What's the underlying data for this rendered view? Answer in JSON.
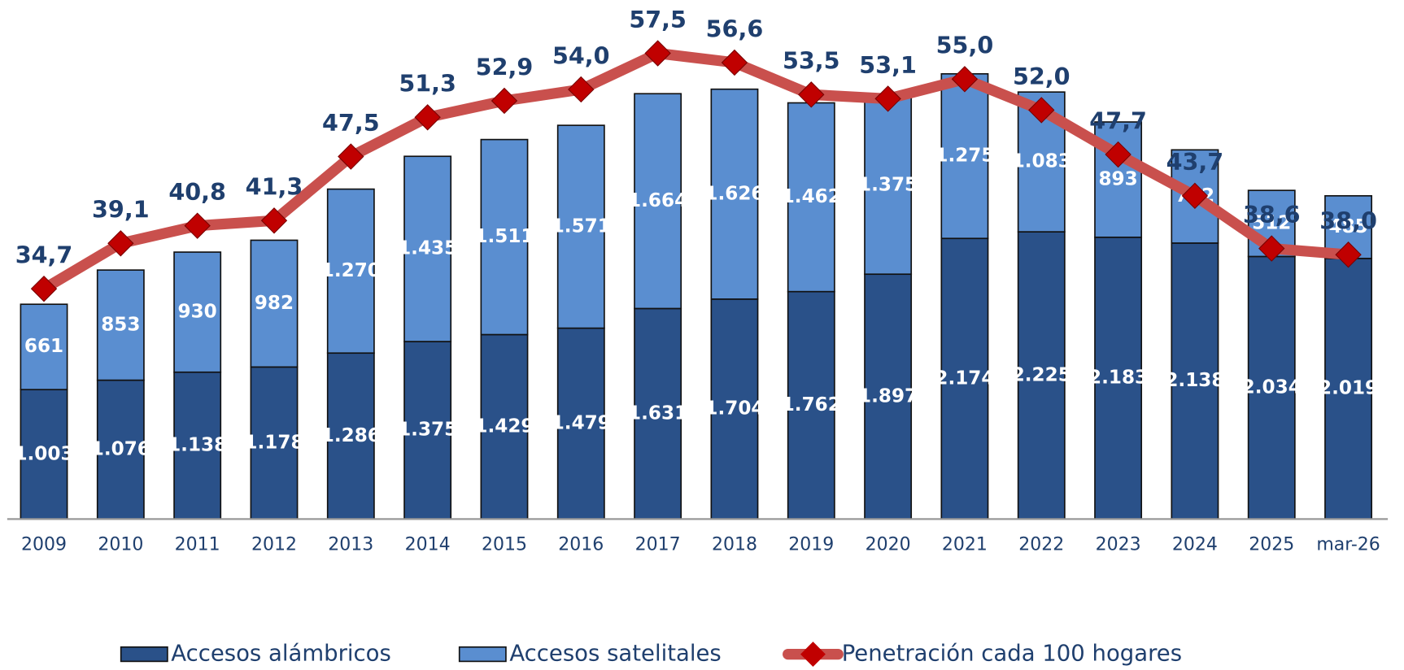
{
  "chart_data": {
    "type": "bar-line",
    "categories": [
      "2009",
      "2010",
      "2011",
      "2012",
      "2013",
      "2014",
      "2015",
      "2016",
      "2017",
      "2018",
      "2019",
      "2020",
      "2021",
      "2022",
      "2023",
      "2024",
      "2025",
      "mar-26"
    ],
    "series": [
      {
        "name": "Accesos alámbricos",
        "type": "bar",
        "color": "#2a5189",
        "values": [
          1003,
          1076,
          1138,
          1178,
          1286,
          1375,
          1429,
          1479,
          1631,
          1704,
          1762,
          1897,
          2174,
          2225,
          2183,
          2138,
          2034,
          2019
        ],
        "value_labels": [
          "1.003",
          "1.076",
          "1.138",
          "1.178",
          "1.286",
          "1.375",
          "1.429",
          "1.479",
          "1.631",
          "1.704",
          "1.762",
          "1.897",
          "2.174",
          "2.225",
          "2.183",
          "2.138",
          "2.034",
          "2.019"
        ]
      },
      {
        "name": "Accesos satelitales",
        "type": "bar",
        "color": "#5a8ed0",
        "values": [
          661,
          853,
          930,
          982,
          1270,
          1435,
          1511,
          1571,
          1664,
          1626,
          1462,
          1375,
          1275,
          1083,
          893,
          722,
          512,
          485
        ],
        "value_labels": [
          "661",
          "853",
          "930",
          "982",
          "1.270",
          "1.435",
          "1.511",
          "1.571",
          "1.664",
          "1.626",
          "1.462",
          "1.375",
          "1.275",
          "1.083",
          "893",
          "722",
          "512",
          "485"
        ]
      },
      {
        "name": "Penetración cada 100 hogares",
        "type": "line",
        "axis": "y2",
        "color": "#c9504d",
        "marker_color": "#c00000",
        "values": [
          34.7,
          39.1,
          40.8,
          41.3,
          47.5,
          51.3,
          52.9,
          54.0,
          57.5,
          56.6,
          53.5,
          53.1,
          55.0,
          52.0,
          47.7,
          43.7,
          38.6,
          38.0
        ],
        "value_labels": [
          "34,7",
          "39,1",
          "40,8",
          "41,3",
          "47,5",
          "51,3",
          "52,9",
          "54,0",
          "57,5",
          "56,6",
          "53,5",
          "53,1",
          "55,0",
          "52,0",
          "47,7",
          "43,7",
          "38,6",
          "38,0"
        ]
      }
    ],
    "ylim": [
      0,
      4000
    ],
    "y2lim": [
      12.4,
      62.4
    ],
    "legend": "bottom"
  }
}
